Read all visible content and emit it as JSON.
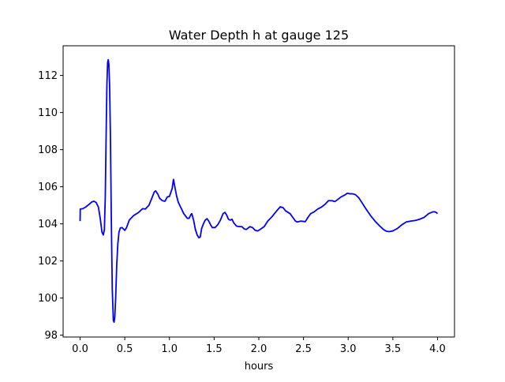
{
  "chart_data": {
    "type": "line",
    "title": "Water Depth h at gauge 125",
    "xlabel": "hours",
    "ylabel": "",
    "xlim": [
      -0.19,
      4.19
    ],
    "ylim": [
      97.9,
      113.6
    ],
    "x_ticks": [
      0.0,
      0.5,
      1.0,
      1.5,
      2.0,
      2.5,
      3.0,
      3.5,
      4.0
    ],
    "x_tick_labels": [
      "0.0",
      "0.5",
      "1.0",
      "1.5",
      "2.0",
      "2.5",
      "3.0",
      "3.5",
      "4.0"
    ],
    "y_ticks": [
      98,
      100,
      102,
      104,
      106,
      108,
      110,
      112
    ],
    "y_tick_labels": [
      "98",
      "100",
      "102",
      "104",
      "106",
      "108",
      "110",
      "112"
    ],
    "grid": false,
    "legend": "none",
    "colors": {
      "line": "#0000ff",
      "axes": "#000000",
      "background": "#ffffff"
    },
    "series": [
      {
        "points": [
          [
            0.0,
            104.15
          ],
          [
            0.002,
            104.8
          ],
          [
            0.03,
            104.82
          ],
          [
            0.06,
            104.9
          ],
          [
            0.1,
            105.05
          ],
          [
            0.13,
            105.18
          ],
          [
            0.155,
            105.22
          ],
          [
            0.18,
            105.15
          ],
          [
            0.205,
            104.9
          ],
          [
            0.225,
            104.3
          ],
          [
            0.245,
            103.55
          ],
          [
            0.26,
            103.4
          ],
          [
            0.272,
            103.7
          ],
          [
            0.282,
            105.5
          ],
          [
            0.292,
            109.0
          ],
          [
            0.3,
            111.5
          ],
          [
            0.308,
            112.7
          ],
          [
            0.315,
            112.85
          ],
          [
            0.322,
            112.6
          ],
          [
            0.33,
            111.5
          ],
          [
            0.34,
            108.5
          ],
          [
            0.35,
            104.0
          ],
          [
            0.36,
            100.5
          ],
          [
            0.372,
            98.8
          ],
          [
            0.38,
            98.7
          ],
          [
            0.388,
            98.95
          ],
          [
            0.398,
            100.0
          ],
          [
            0.41,
            101.8
          ],
          [
            0.422,
            102.9
          ],
          [
            0.435,
            103.55
          ],
          [
            0.45,
            103.78
          ],
          [
            0.47,
            103.8
          ],
          [
            0.5,
            103.65
          ],
          [
            0.52,
            103.8
          ],
          [
            0.55,
            104.2
          ],
          [
            0.6,
            104.45
          ],
          [
            0.65,
            104.6
          ],
          [
            0.7,
            104.82
          ],
          [
            0.73,
            104.8
          ],
          [
            0.77,
            105.0
          ],
          [
            0.8,
            105.35
          ],
          [
            0.83,
            105.72
          ],
          [
            0.845,
            105.78
          ],
          [
            0.87,
            105.6
          ],
          [
            0.89,
            105.38
          ],
          [
            0.92,
            105.25
          ],
          [
            0.95,
            105.22
          ],
          [
            0.975,
            105.45
          ],
          [
            1.0,
            105.48
          ],
          [
            1.03,
            105.9
          ],
          [
            1.045,
            106.4
          ],
          [
            1.06,
            106.0
          ],
          [
            1.08,
            105.5
          ],
          [
            1.1,
            105.15
          ],
          [
            1.13,
            104.85
          ],
          [
            1.16,
            104.55
          ],
          [
            1.2,
            104.3
          ],
          [
            1.22,
            104.3
          ],
          [
            1.24,
            104.5
          ],
          [
            1.25,
            104.55
          ],
          [
            1.27,
            104.2
          ],
          [
            1.29,
            103.7
          ],
          [
            1.31,
            103.4
          ],
          [
            1.33,
            103.25
          ],
          [
            1.345,
            103.3
          ],
          [
            1.36,
            103.75
          ],
          [
            1.38,
            104.0
          ],
          [
            1.4,
            104.2
          ],
          [
            1.42,
            104.28
          ],
          [
            1.44,
            104.15
          ],
          [
            1.46,
            103.95
          ],
          [
            1.48,
            103.8
          ],
          [
            1.51,
            103.8
          ],
          [
            1.54,
            103.95
          ],
          [
            1.57,
            104.2
          ],
          [
            1.6,
            104.55
          ],
          [
            1.62,
            104.62
          ],
          [
            1.64,
            104.48
          ],
          [
            1.66,
            104.25
          ],
          [
            1.68,
            104.2
          ],
          [
            1.7,
            104.25
          ],
          [
            1.72,
            104.05
          ],
          [
            1.75,
            103.88
          ],
          [
            1.78,
            103.85
          ],
          [
            1.81,
            103.85
          ],
          [
            1.84,
            103.72
          ],
          [
            1.86,
            103.7
          ],
          [
            1.9,
            103.85
          ],
          [
            1.93,
            103.8
          ],
          [
            1.96,
            103.65
          ],
          [
            1.99,
            103.62
          ],
          [
            2.03,
            103.75
          ],
          [
            2.06,
            103.85
          ],
          [
            2.1,
            104.15
          ],
          [
            2.15,
            104.4
          ],
          [
            2.2,
            104.7
          ],
          [
            2.24,
            104.92
          ],
          [
            2.27,
            104.88
          ],
          [
            2.3,
            104.7
          ],
          [
            2.35,
            104.55
          ],
          [
            2.38,
            104.35
          ],
          [
            2.41,
            104.15
          ],
          [
            2.43,
            104.1
          ],
          [
            2.47,
            104.15
          ],
          [
            2.52,
            104.12
          ],
          [
            2.55,
            104.35
          ],
          [
            2.58,
            104.55
          ],
          [
            2.62,
            104.65
          ],
          [
            2.66,
            104.8
          ],
          [
            2.7,
            104.9
          ],
          [
            2.74,
            105.05
          ],
          [
            2.78,
            105.25
          ],
          [
            2.82,
            105.25
          ],
          [
            2.85,
            105.2
          ],
          [
            2.88,
            105.3
          ],
          [
            2.92,
            105.45
          ],
          [
            2.96,
            105.55
          ],
          [
            2.99,
            105.65
          ],
          [
            3.02,
            105.62
          ],
          [
            3.05,
            105.62
          ],
          [
            3.08,
            105.58
          ],
          [
            3.12,
            105.4
          ],
          [
            3.16,
            105.1
          ],
          [
            3.2,
            104.8
          ],
          [
            3.25,
            104.45
          ],
          [
            3.3,
            104.15
          ],
          [
            3.35,
            103.9
          ],
          [
            3.4,
            103.68
          ],
          [
            3.43,
            103.6
          ],
          [
            3.46,
            103.58
          ],
          [
            3.5,
            103.62
          ],
          [
            3.55,
            103.75
          ],
          [
            3.6,
            103.95
          ],
          [
            3.65,
            104.1
          ],
          [
            3.7,
            104.15
          ],
          [
            3.75,
            104.18
          ],
          [
            3.8,
            104.25
          ],
          [
            3.85,
            104.35
          ],
          [
            3.9,
            104.55
          ],
          [
            3.95,
            104.65
          ],
          [
            3.97,
            104.65
          ],
          [
            3.99,
            104.6
          ],
          [
            4.0,
            104.55
          ]
        ]
      }
    ]
  }
}
